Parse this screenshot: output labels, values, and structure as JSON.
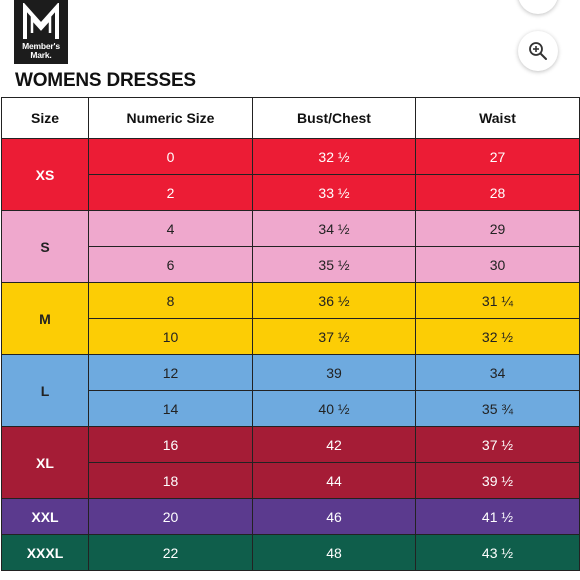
{
  "brand": {
    "logo_text_line1": "Member's",
    "logo_text_line2": "Mark."
  },
  "title": "WOMENS DRESSES",
  "table": {
    "headers": [
      "Size",
      "Numeric Size",
      "Bust/Chest",
      "Waist"
    ],
    "groups": [
      {
        "size": "XS",
        "color": "#ec1c35",
        "text_dark": false,
        "rows": [
          {
            "numeric": "0",
            "bust": "32 ½",
            "waist": "27"
          },
          {
            "numeric": "2",
            "bust": "33 ½",
            "waist": "28"
          }
        ]
      },
      {
        "size": "S",
        "color": "#efa8cd",
        "text_dark": true,
        "rows": [
          {
            "numeric": "4",
            "bust": "34 ½",
            "waist": "29"
          },
          {
            "numeric": "6",
            "bust": "35 ½",
            "waist": "30"
          }
        ]
      },
      {
        "size": "M",
        "color": "#fccd05",
        "text_dark": true,
        "rows": [
          {
            "numeric": "8",
            "bust": "36 ½",
            "waist": "31 ¼"
          },
          {
            "numeric": "10",
            "bust": "37 ½",
            "waist": "32 ½"
          }
        ]
      },
      {
        "size": "L",
        "color": "#6eaadf",
        "text_dark": true,
        "rows": [
          {
            "numeric": "12",
            "bust": "39",
            "waist": "34"
          },
          {
            "numeric": "14",
            "bust": "40 ½",
            "waist": "35 ¾"
          }
        ]
      },
      {
        "size": "XL",
        "color": "#a51c36",
        "text_dark": false,
        "rows": [
          {
            "numeric": "16",
            "bust": "42",
            "waist": "37 ½"
          },
          {
            "numeric": "18",
            "bust": "44",
            "waist": "39 ½"
          }
        ]
      },
      {
        "size": "XXL",
        "color": "#5b3a8e",
        "text_dark": false,
        "rows": [
          {
            "numeric": "20",
            "bust": "46",
            "waist": "41 ½"
          }
        ]
      },
      {
        "size": "XXXL",
        "color": "#0f5e4b",
        "text_dark": false,
        "rows": [
          {
            "numeric": "22",
            "bust": "48",
            "waist": "43 ½"
          }
        ]
      }
    ]
  },
  "icons": {
    "zoom": "zoom-in-icon",
    "logo": "brand-logo-icon"
  }
}
